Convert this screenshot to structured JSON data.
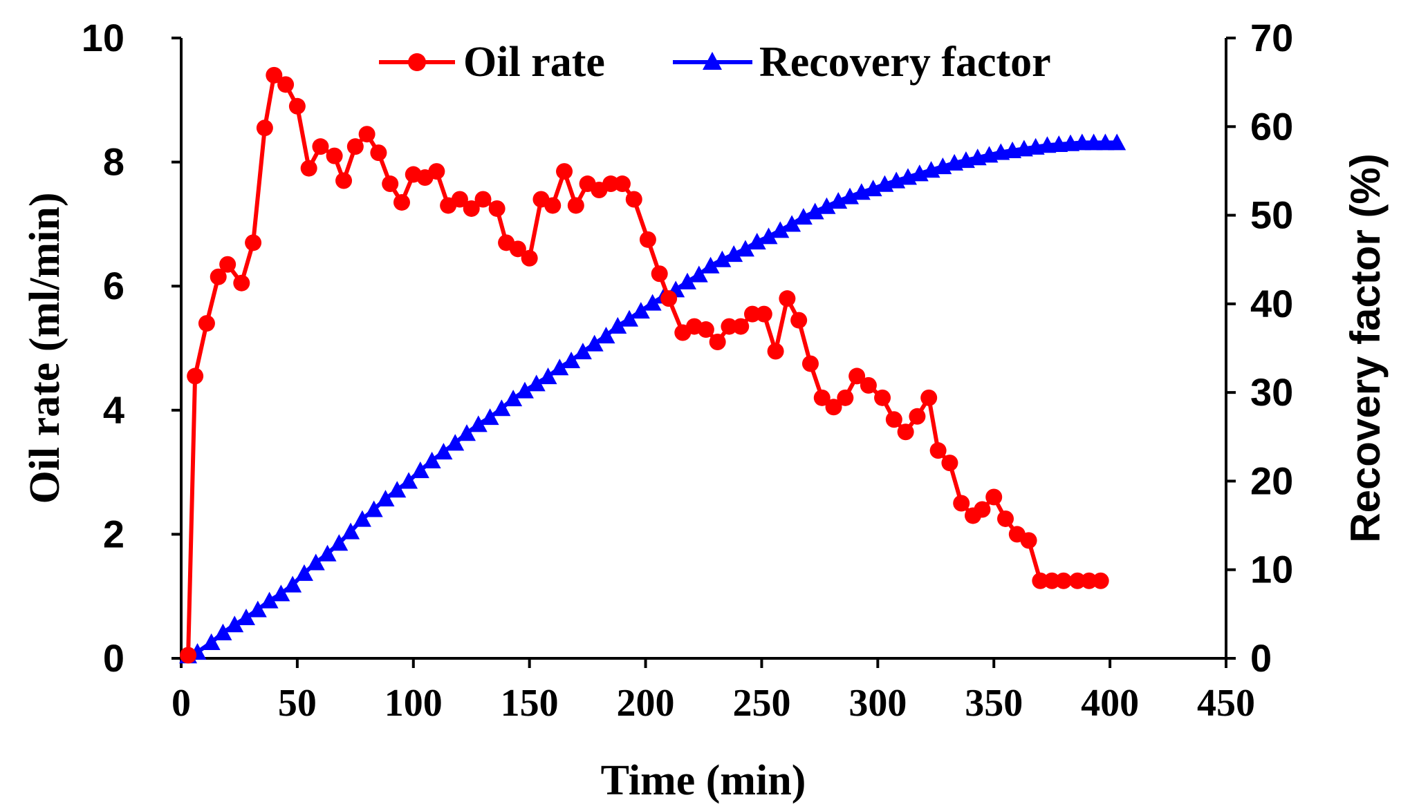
{
  "chart_data": {
    "type": "line",
    "title": "",
    "xlabel": "Time (min)",
    "ylabel": "Oil rate (ml/min)",
    "y2label": "Recovery factor (%)",
    "xlim": [
      0,
      450
    ],
    "ylim": [
      0,
      10
    ],
    "y2lim": [
      0,
      70
    ],
    "xticks": [
      "0",
      "50",
      "100",
      "150",
      "200",
      "250",
      "300",
      "350",
      "400",
      "450"
    ],
    "yticks": [
      "0",
      "2",
      "4",
      "6",
      "8",
      "10"
    ],
    "y2ticks": [
      "0",
      "10",
      "20",
      "30",
      "40",
      "50",
      "60",
      "70"
    ],
    "legend": {
      "position": "top-center"
    },
    "series": [
      {
        "name": "Oil rate",
        "axis": "left",
        "color": "#ff0000",
        "marker": "circle",
        "x": [
          3,
          6,
          11,
          16,
          20,
          26,
          31,
          36,
          40,
          45,
          50,
          55,
          60,
          66,
          70,
          75,
          80,
          85,
          90,
          95,
          100,
          105,
          110,
          115,
          120,
          125,
          130,
          136,
          140,
          145,
          150,
          155,
          160,
          165,
          170,
          175,
          180,
          185,
          190,
          195,
          201,
          206,
          210,
          216,
          221,
          226,
          231,
          236,
          241,
          246,
          251,
          256,
          261,
          266,
          271,
          276,
          281,
          286,
          291,
          296,
          302,
          307,
          312,
          317,
          322,
          326,
          331,
          336,
          341,
          345,
          350,
          355,
          360,
          365,
          370,
          375,
          380,
          386,
          391,
          396
        ],
        "values": [
          0.05,
          4.55,
          5.4,
          6.15,
          6.35,
          6.05,
          6.7,
          8.55,
          9.4,
          9.25,
          8.9,
          7.9,
          8.25,
          8.1,
          7.7,
          8.25,
          8.45,
          8.15,
          7.65,
          7.35,
          7.8,
          7.75,
          7.85,
          7.3,
          7.4,
          7.25,
          7.4,
          7.25,
          6.7,
          6.6,
          6.45,
          7.4,
          7.3,
          7.85,
          7.3,
          7.65,
          7.55,
          7.65,
          7.65,
          7.4,
          6.75,
          6.2,
          5.8,
          5.25,
          5.35,
          5.3,
          5.1,
          5.35,
          5.35,
          5.55,
          5.55,
          4.95,
          5.8,
          5.45,
          4.75,
          4.2,
          4.05,
          4.2,
          4.55,
          4.4,
          4.2,
          3.85,
          3.65,
          3.9,
          4.2,
          3.35,
          3.15,
          2.5,
          2.3,
          2.4,
          2.6,
          2.25,
          2.0,
          1.9,
          1.25,
          1.25,
          1.25,
          1.25,
          1.25,
          1.25
        ]
      },
      {
        "name": "Recovery factor",
        "axis": "right",
        "color": "#0000ff",
        "marker": "triangle",
        "x": [
          3,
          7,
          13,
          18,
          23,
          28,
          33,
          38,
          43,
          48,
          53,
          58,
          63,
          68,
          73,
          78,
          83,
          88,
          93,
          98,
          103,
          108,
          113,
          118,
          123,
          128,
          133,
          138,
          143,
          148,
          153,
          158,
          163,
          168,
          173,
          178,
          183,
          188,
          193,
          198,
          203,
          208,
          213,
          218,
          223,
          228,
          233,
          238,
          243,
          248,
          253,
          258,
          263,
          268,
          273,
          278,
          283,
          288,
          293,
          298,
          303,
          308,
          313,
          318,
          323,
          328,
          333,
          338,
          343,
          348,
          353,
          358,
          363,
          368,
          373,
          378,
          383,
          388,
          393,
          398,
          403
        ],
        "values": [
          0.3,
          0.7,
          1.8,
          2.9,
          3.8,
          4.6,
          5.5,
          6.5,
          7.3,
          8.3,
          9.6,
          10.8,
          11.8,
          13.0,
          14.3,
          15.7,
          16.8,
          18.0,
          19.0,
          20.0,
          21.2,
          22.3,
          23.3,
          24.3,
          25.4,
          26.4,
          27.2,
          28.2,
          29.3,
          30.2,
          31.0,
          31.8,
          32.8,
          33.6,
          34.6,
          35.5,
          36.4,
          37.5,
          38.3,
          39.2,
          40.1,
          40.9,
          41.6,
          42.5,
          43.3,
          44.3,
          45.0,
          45.6,
          46.2,
          47.0,
          47.6,
          48.3,
          49.0,
          49.8,
          50.4,
          51.0,
          51.6,
          52.1,
          52.6,
          53.0,
          53.5,
          53.9,
          54.3,
          54.7,
          55.1,
          55.5,
          55.9,
          56.2,
          56.5,
          56.8,
          57.1,
          57.3,
          57.5,
          57.7,
          57.9,
          58.0,
          58.1,
          58.2,
          58.2,
          58.2,
          58.2
        ]
      }
    ]
  }
}
